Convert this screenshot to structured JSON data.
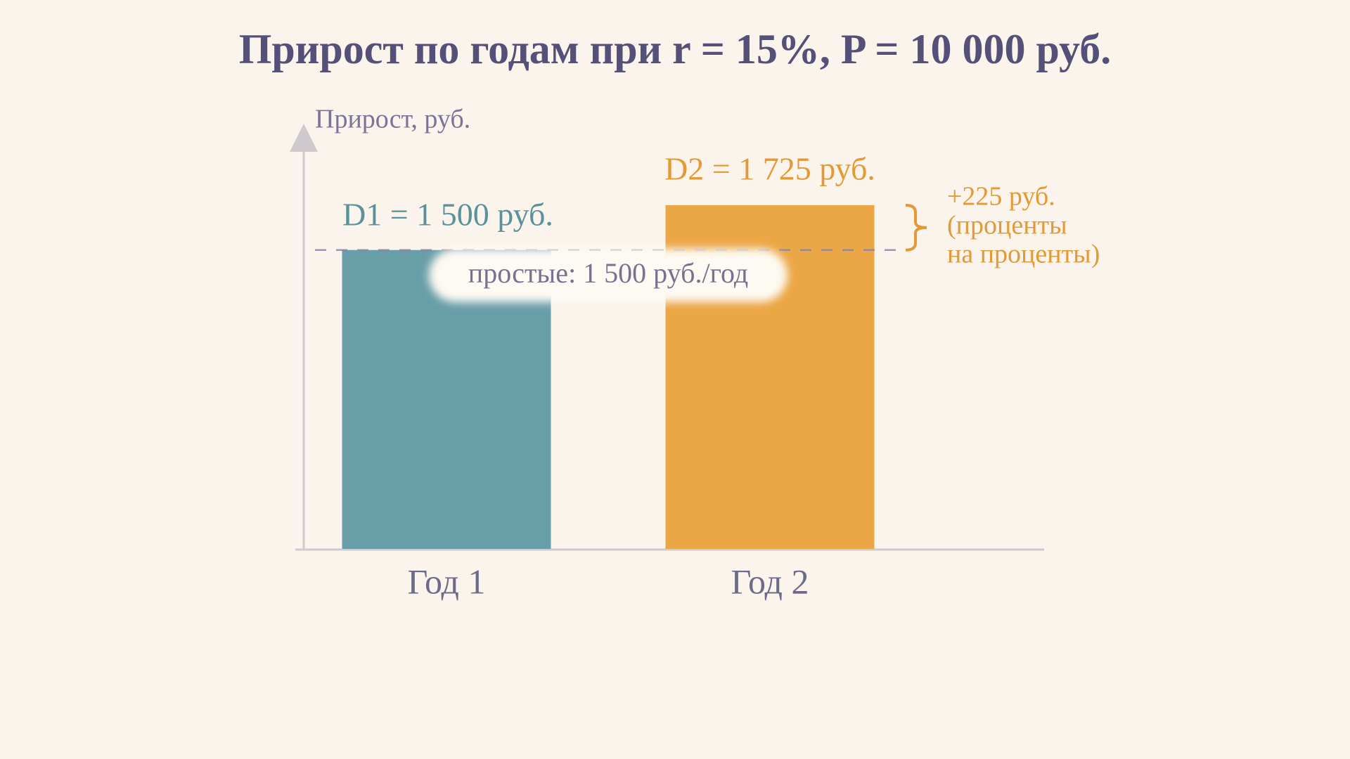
{
  "chart_data": {
    "type": "bar",
    "title": "Прирост по годам при r = 15%, P = 10 000 руб.",
    "y_label": "Прирост, руб.",
    "categories": [
      "Год 1",
      "Год 2"
    ],
    "values": [
      1500,
      1725
    ],
    "value_labels": [
      "D1 = 1 500 руб.",
      "D2 = 1 725 руб."
    ],
    "colors": [
      "#689ea8",
      "#eba645"
    ],
    "label_colors": [
      "#5a929b",
      "#e39a35"
    ],
    "ylim": [
      0,
      2000
    ],
    "reference_line": {
      "value": 1500,
      "label": "простые: 1 500 руб./год"
    },
    "bracket": {
      "range": [
        1500,
        1725
      ],
      "lines": [
        "+225 руб.",
        "(проценты",
        "на проценты)"
      ],
      "color": "#e39a35"
    }
  }
}
